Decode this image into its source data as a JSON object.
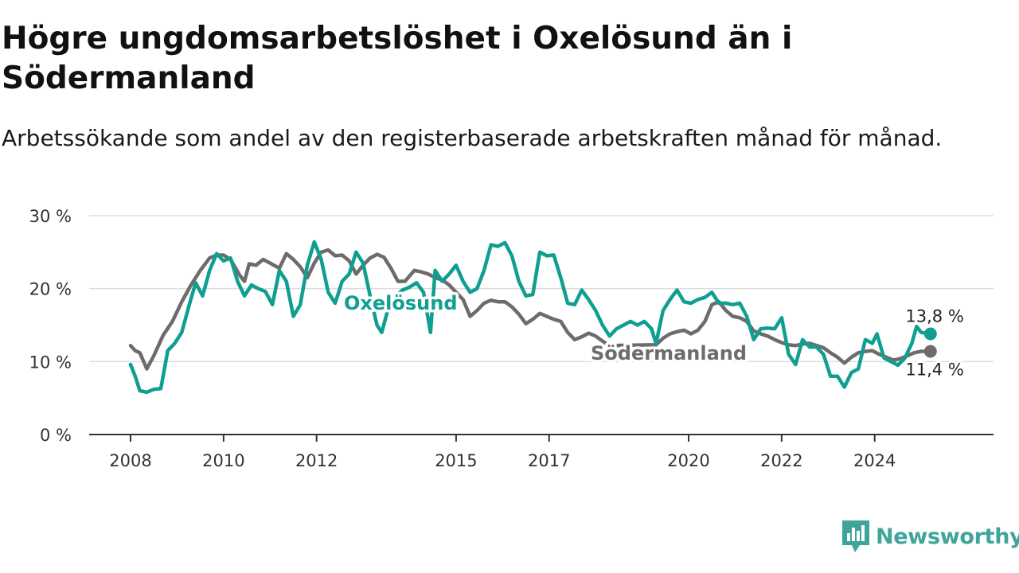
{
  "header": {
    "title": "Högre ungdomsarbetslöshet i Oxelösund än i Södermanland",
    "subtitle": "Arbetssökande som andel av den registerbaserade arbetskraften månad för månad."
  },
  "brand": {
    "name": "Newsworthy",
    "color": "#3fa59a",
    "icon": "bar-chart-logo-icon"
  },
  "chart_data": {
    "type": "line",
    "title": "Högre ungdomsarbetslöshet i Oxelösund än i Södermanland",
    "subtitle": "Arbetssökande som andel av den registerbaserade arbetskraften månad för månad.",
    "xlabel": "",
    "ylabel": "",
    "ylim": [
      0,
      30
    ],
    "xlim": [
      2008,
      2025.7
    ],
    "y_ticks": [
      {
        "value": 0,
        "label": "0 %"
      },
      {
        "value": 10,
        "label": "10 %"
      },
      {
        "value": 20,
        "label": "20 %"
      },
      {
        "value": 30,
        "label": "30 %"
      }
    ],
    "x_ticks": [
      {
        "value": 2008,
        "label": "2008"
      },
      {
        "value": 2010,
        "label": "2010"
      },
      {
        "value": 2012,
        "label": "2012"
      },
      {
        "value": 2015,
        "label": "2015"
      },
      {
        "value": 2017,
        "label": "2017"
      },
      {
        "value": 2020,
        "label": "2020"
      },
      {
        "value": 2022,
        "label": "2022"
      },
      {
        "value": 2024,
        "label": "2024"
      }
    ],
    "grid": "horizontal",
    "series": [
      {
        "name": "Södermanland",
        "color": "#6e6b6c",
        "end_label": "11,4 %",
        "label_anchor": {
          "x": 2017.5,
          "y": 12
        },
        "points": [
          [
            2008.0,
            12.2
          ],
          [
            2008.1,
            11.5
          ],
          [
            2008.2,
            11.2
          ],
          [
            2008.35,
            9.0
          ],
          [
            2008.5,
            10.8
          ],
          [
            2008.7,
            13.6
          ],
          [
            2008.9,
            15.5
          ],
          [
            2009.1,
            18.2
          ],
          [
            2009.3,
            20.5
          ],
          [
            2009.5,
            22.5
          ],
          [
            2009.7,
            24.2
          ],
          [
            2009.85,
            24.6
          ],
          [
            2010.0,
            24.6
          ],
          [
            2010.15,
            24.0
          ],
          [
            2010.35,
            21.8
          ],
          [
            2010.45,
            21.0
          ],
          [
            2010.55,
            23.4
          ],
          [
            2010.7,
            23.2
          ],
          [
            2010.85,
            24.0
          ],
          [
            2011.0,
            23.5
          ],
          [
            2011.2,
            22.8
          ],
          [
            2011.35,
            24.8
          ],
          [
            2011.5,
            24.0
          ],
          [
            2011.65,
            23.0
          ],
          [
            2011.8,
            21.5
          ],
          [
            2011.95,
            23.5
          ],
          [
            2012.1,
            25.0
          ],
          [
            2012.25,
            25.3
          ],
          [
            2012.4,
            24.5
          ],
          [
            2012.55,
            24.6
          ],
          [
            2012.7,
            23.8
          ],
          [
            2012.85,
            22.0
          ],
          [
            2013.0,
            23.2
          ],
          [
            2013.15,
            24.2
          ],
          [
            2013.3,
            24.7
          ],
          [
            2013.45,
            24.3
          ],
          [
            2013.6,
            22.8
          ],
          [
            2013.75,
            21.0
          ],
          [
            2013.9,
            21.0
          ],
          [
            2014.1,
            22.5
          ],
          [
            2014.25,
            22.3
          ],
          [
            2014.4,
            22.0
          ],
          [
            2014.55,
            21.5
          ],
          [
            2014.7,
            21.2
          ],
          [
            2014.85,
            20.5
          ],
          [
            2015.0,
            19.5
          ],
          [
            2015.15,
            18.5
          ],
          [
            2015.3,
            16.2
          ],
          [
            2015.45,
            17.0
          ],
          [
            2015.6,
            18.0
          ],
          [
            2015.75,
            18.4
          ],
          [
            2015.9,
            18.2
          ],
          [
            2016.05,
            18.2
          ],
          [
            2016.2,
            17.5
          ],
          [
            2016.35,
            16.5
          ],
          [
            2016.5,
            15.2
          ],
          [
            2016.65,
            15.8
          ],
          [
            2016.8,
            16.6
          ],
          [
            2016.95,
            16.2
          ],
          [
            2017.1,
            15.8
          ],
          [
            2017.25,
            15.5
          ],
          [
            2017.4,
            14.0
          ],
          [
            2017.55,
            13.0
          ],
          [
            2017.7,
            13.4
          ],
          [
            2017.85,
            13.9
          ],
          [
            2018.0,
            13.5
          ],
          [
            2018.15,
            12.8
          ],
          [
            2018.3,
            12.2
          ],
          [
            2019.3,
            12.3
          ],
          [
            2019.45,
            13.2
          ],
          [
            2019.6,
            13.8
          ],
          [
            2019.75,
            14.1
          ],
          [
            2019.9,
            14.3
          ],
          [
            2020.05,
            13.8
          ],
          [
            2020.2,
            14.3
          ],
          [
            2020.35,
            15.5
          ],
          [
            2020.5,
            17.8
          ],
          [
            2020.65,
            18.2
          ],
          [
            2020.8,
            17.0
          ],
          [
            2020.95,
            16.2
          ],
          [
            2021.1,
            16.0
          ],
          [
            2021.25,
            15.5
          ],
          [
            2021.4,
            14.2
          ],
          [
            2021.55,
            13.8
          ],
          [
            2021.7,
            13.5
          ],
          [
            2021.85,
            13.0
          ],
          [
            2022.0,
            12.6
          ],
          [
            2022.15,
            12.3
          ],
          [
            2022.3,
            12.2
          ],
          [
            2022.45,
            12.4
          ],
          [
            2022.6,
            12.5
          ],
          [
            2022.75,
            12.2
          ],
          [
            2022.9,
            11.9
          ],
          [
            2023.05,
            11.2
          ],
          [
            2023.2,
            10.6
          ],
          [
            2023.35,
            9.8
          ],
          [
            2023.5,
            10.6
          ],
          [
            2023.65,
            11.2
          ],
          [
            2023.8,
            11.4
          ],
          [
            2023.95,
            11.5
          ],
          [
            2024.1,
            11.0
          ],
          [
            2024.25,
            10.6
          ],
          [
            2024.4,
            10.2
          ],
          [
            2024.55,
            10.4
          ],
          [
            2024.7,
            10.8
          ],
          [
            2024.85,
            11.2
          ],
          [
            2025.0,
            11.4
          ],
          [
            2025.2,
            11.4
          ]
        ]
      },
      {
        "name": "Oxelösund",
        "color": "#0f9f91",
        "end_label": "13,8 %",
        "label_anchor": {
          "x": 2008.7,
          "y": 19
        },
        "points": [
          [
            2008.0,
            9.6
          ],
          [
            2008.1,
            8.0
          ],
          [
            2008.2,
            6.0
          ],
          [
            2008.35,
            5.8
          ],
          [
            2008.5,
            6.2
          ],
          [
            2008.65,
            6.3
          ],
          [
            2008.8,
            11.5
          ],
          [
            2008.95,
            12.5
          ],
          [
            2009.1,
            14.0
          ],
          [
            2009.25,
            17.5
          ],
          [
            2009.4,
            20.8
          ],
          [
            2009.55,
            19.0
          ],
          [
            2009.7,
            22.5
          ],
          [
            2009.85,
            24.8
          ],
          [
            2010.0,
            23.8
          ],
          [
            2010.15,
            24.2
          ],
          [
            2010.3,
            21.0
          ],
          [
            2010.45,
            19.0
          ],
          [
            2010.6,
            20.5
          ],
          [
            2010.75,
            20.0
          ],
          [
            2010.9,
            19.6
          ],
          [
            2011.05,
            17.8
          ],
          [
            2011.2,
            22.5
          ],
          [
            2011.35,
            21.0
          ],
          [
            2011.5,
            16.2
          ],
          [
            2011.65,
            17.8
          ],
          [
            2011.8,
            23.2
          ],
          [
            2011.95,
            26.4
          ],
          [
            2012.1,
            24.0
          ],
          [
            2012.25,
            19.5
          ],
          [
            2012.4,
            18.0
          ],
          [
            2012.55,
            21.0
          ],
          [
            2012.7,
            22.0
          ],
          [
            2012.85,
            25.0
          ],
          [
            2013.0,
            23.5
          ],
          [
            2013.15,
            19.0
          ],
          [
            2013.3,
            15.0
          ],
          [
            2013.4,
            14.0
          ],
          [
            2013.55,
            17.5
          ],
          [
            2013.7,
            19.0
          ],
          [
            2013.85,
            19.8
          ],
          [
            2014.0,
            20.2
          ],
          [
            2014.15,
            20.8
          ],
          [
            2014.3,
            19.5
          ],
          [
            2014.45,
            14.0
          ],
          [
            2014.55,
            22.5
          ],
          [
            2014.7,
            21.0
          ],
          [
            2014.85,
            22.0
          ],
          [
            2015.0,
            23.2
          ],
          [
            2015.15,
            21.0
          ],
          [
            2015.3,
            19.5
          ],
          [
            2015.45,
            20.0
          ],
          [
            2015.6,
            22.5
          ],
          [
            2015.75,
            26.0
          ],
          [
            2015.9,
            25.8
          ],
          [
            2016.05,
            26.3
          ],
          [
            2016.2,
            24.5
          ],
          [
            2016.35,
            21.0
          ],
          [
            2016.5,
            19.0
          ],
          [
            2016.65,
            19.2
          ],
          [
            2016.8,
            25.0
          ],
          [
            2016.95,
            24.5
          ],
          [
            2017.1,
            24.6
          ],
          [
            2017.25,
            21.5
          ],
          [
            2017.4,
            18.0
          ],
          [
            2017.55,
            17.8
          ],
          [
            2017.7,
            19.8
          ],
          [
            2017.85,
            18.5
          ],
          [
            2018.0,
            17.0
          ],
          [
            2018.15,
            15.0
          ],
          [
            2018.3,
            13.5
          ],
          [
            2018.45,
            14.5
          ],
          [
            2018.6,
            15.0
          ],
          [
            2018.75,
            15.5
          ],
          [
            2018.9,
            15.0
          ],
          [
            2019.05,
            15.5
          ],
          [
            2019.2,
            14.5
          ],
          [
            2019.3,
            12.5
          ],
          [
            2019.45,
            17.0
          ],
          [
            2019.6,
            18.5
          ],
          [
            2019.75,
            19.8
          ],
          [
            2019.9,
            18.2
          ],
          [
            2020.05,
            18.0
          ],
          [
            2020.2,
            18.5
          ],
          [
            2020.35,
            18.8
          ],
          [
            2020.5,
            19.5
          ],
          [
            2020.65,
            18.0
          ],
          [
            2020.8,
            18.0
          ],
          [
            2020.95,
            17.8
          ],
          [
            2021.1,
            18.0
          ],
          [
            2021.25,
            16.2
          ],
          [
            2021.4,
            13.0
          ],
          [
            2021.55,
            14.5
          ],
          [
            2021.7,
            14.6
          ],
          [
            2021.85,
            14.5
          ],
          [
            2022.0,
            16.0
          ],
          [
            2022.15,
            11.0
          ],
          [
            2022.3,
            9.6
          ],
          [
            2022.45,
            13.0
          ],
          [
            2022.6,
            12.0
          ],
          [
            2022.75,
            12.0
          ],
          [
            2022.9,
            11.0
          ],
          [
            2023.05,
            8.0
          ],
          [
            2023.2,
            8.0
          ],
          [
            2023.35,
            6.5
          ],
          [
            2023.5,
            8.5
          ],
          [
            2023.65,
            9.0
          ],
          [
            2023.8,
            13.0
          ],
          [
            2023.95,
            12.5
          ],
          [
            2024.05,
            13.8
          ],
          [
            2024.2,
            10.5
          ],
          [
            2024.35,
            10.0
          ],
          [
            2024.5,
            9.5
          ],
          [
            2024.65,
            10.5
          ],
          [
            2024.8,
            12.5
          ],
          [
            2024.9,
            14.8
          ],
          [
            2025.0,
            14.0
          ],
          [
            2025.2,
            13.8
          ]
        ]
      }
    ]
  }
}
